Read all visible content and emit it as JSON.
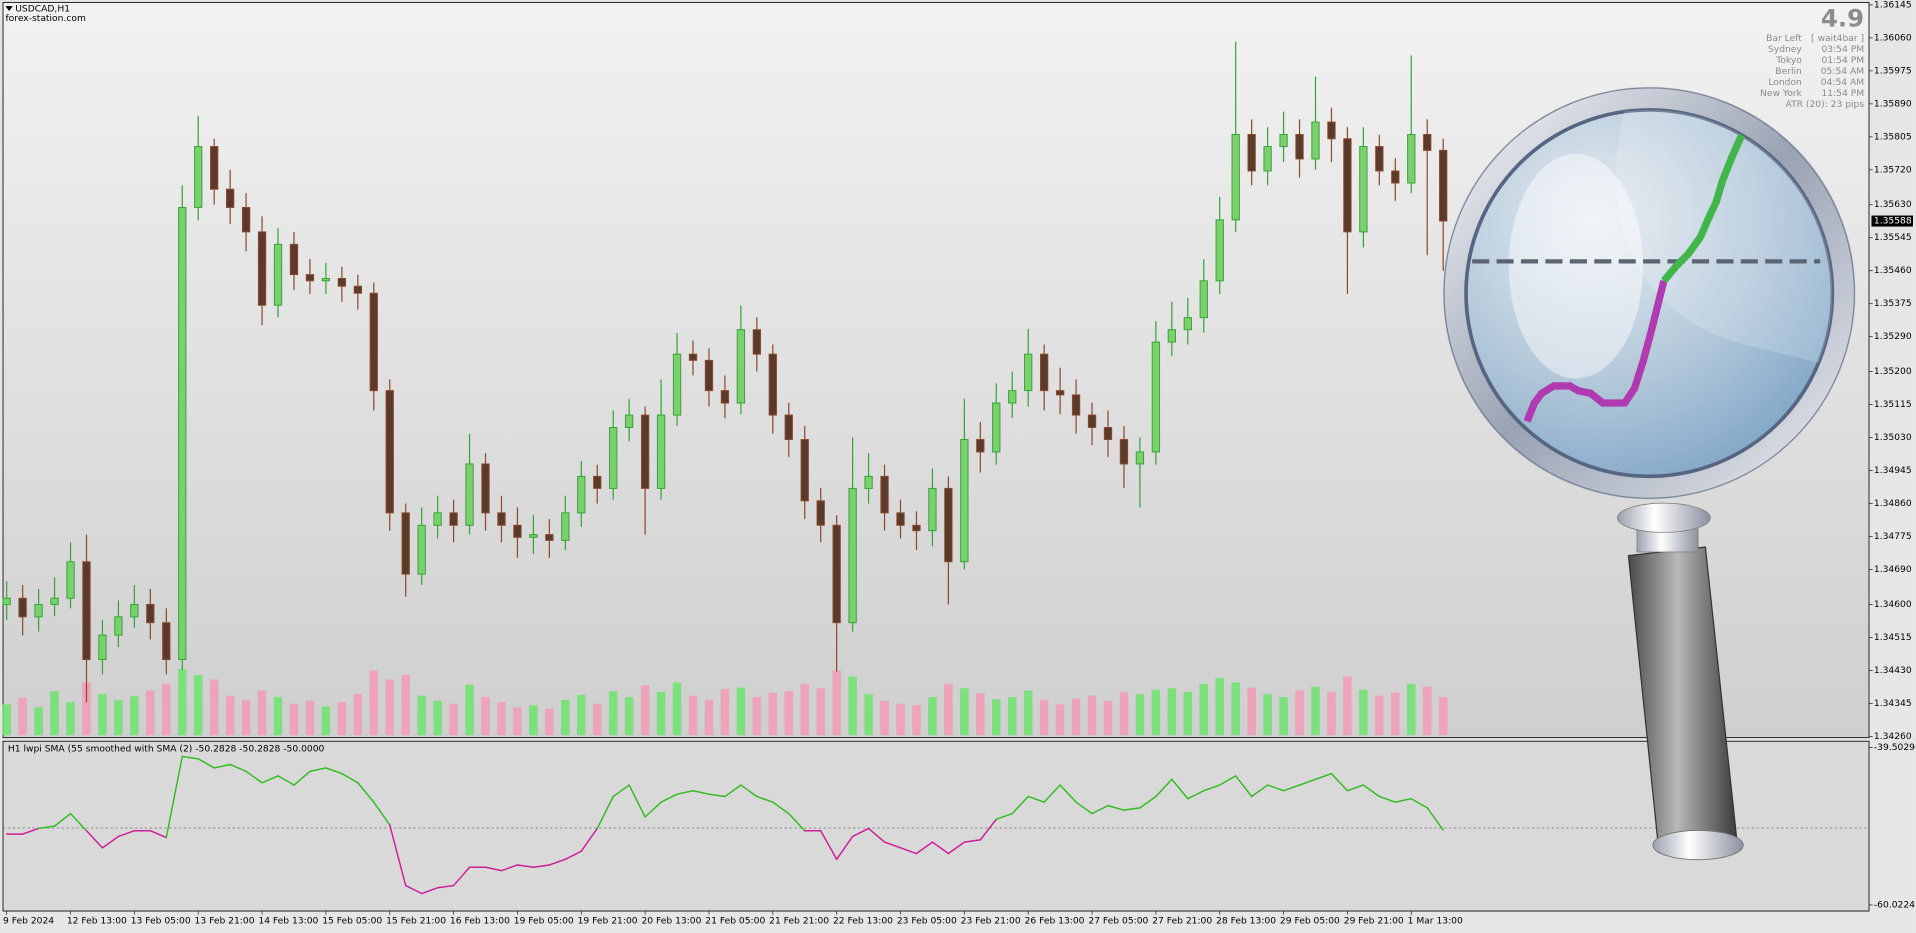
{
  "header": {
    "symbol": "USDCAD,H1",
    "site": "forex-station.com"
  },
  "info": {
    "value": "4.9",
    "rows": [
      [
        "Bar Left",
        "[ wait4bar ]"
      ],
      [
        "Sydney",
        "03:54 PM"
      ],
      [
        "Tokyo",
        "01:54 PM"
      ],
      [
        "Berlin",
        "05:54 AM"
      ],
      [
        "London",
        "04:54 AM"
      ],
      [
        "New York",
        "11:54 PM"
      ]
    ],
    "atr": "ATR (20): 23 pips"
  },
  "chart_data": [
    {
      "type": "candlestick",
      "up_color": "#34a534",
      "down_color": "#8c4a2c",
      "volume_up_color": "#6fe26f",
      "volume_down_color": "#f29bb6",
      "categories": [
        "9 Feb 2024",
        null,
        null,
        null,
        "12 Feb 13:00",
        null,
        null,
        null,
        "13 Feb 05:00",
        null,
        null,
        null,
        "13 Feb 21:00",
        null,
        null,
        null,
        "14 Feb 13:00",
        null,
        null,
        null,
        "15 Feb 05:00",
        null,
        null,
        null,
        "15 Feb 21:00",
        null,
        null,
        null,
        "16 Feb 13:00",
        null,
        null,
        null,
        "19 Feb 05:00",
        null,
        null,
        null,
        "19 Feb 21:00",
        null,
        null,
        null,
        "20 Feb 13:00",
        null,
        null,
        null,
        "21 Feb 05:00",
        null,
        null,
        null,
        "21 Feb 21:00",
        null,
        null,
        null,
        "22 Feb 13:00",
        null,
        null,
        null,
        "23 Feb 05:00",
        null,
        null,
        null,
        "23 Feb 21:00",
        null,
        null,
        null,
        "26 Feb 13:00",
        null,
        null,
        null,
        "27 Feb 05:00",
        null,
        null,
        null,
        "27 Feb 21:00",
        null,
        null,
        null,
        "28 Feb 13:00",
        null,
        null,
        null,
        "29 Feb 05:00",
        null,
        null,
        null,
        "29 Feb 21:00",
        null,
        null,
        null,
        "1 Mar 13:00",
        null,
        null
      ],
      "open": [
        1.346,
        1.34616,
        1.34568,
        1.346,
        1.34616,
        1.3471,
        1.34458,
        1.34521,
        1.34568,
        1.346,
        1.34553,
        1.34458,
        1.35623,
        1.3578,
        1.3567,
        1.35623,
        1.3556,
        1.35371,
        1.35528,
        1.3545,
        1.35434,
        1.3544,
        1.3542,
        1.35402,
        1.35151,
        1.34836,
        1.34678,
        1.34804,
        1.34836,
        1.34804,
        1.34962,
        1.34836,
        1.34804,
        1.34773,
        1.3478,
        1.34765,
        1.34836,
        1.3493,
        1.34899,
        1.35056,
        1.35088,
        1.34899,
        1.35088,
        1.35245,
        1.35229,
        1.35151,
        1.35119,
        1.35308,
        1.35245,
        1.35088,
        1.35025,
        1.34867,
        1.34804,
        1.34553,
        1.34899,
        1.3493,
        1.34836,
        1.34804,
        1.3479,
        1.34899,
        1.3471,
        1.35025,
        1.34993,
        1.35119,
        1.35151,
        1.35245,
        1.35151,
        1.3514,
        1.35088,
        1.35056,
        1.35025,
        1.34962,
        1.34993,
        1.35276,
        1.35308,
        1.35339,
        1.35434,
        1.35591,
        1.35811,
        1.35717,
        1.3578,
        1.35811,
        1.35748,
        1.35843,
        1.358,
        1.3556,
        1.3578,
        1.35717,
        1.35686,
        1.35811,
        1.3577
      ],
      "high": [
        1.3466,
        1.3465,
        1.3464,
        1.3467,
        1.3476,
        1.3478,
        1.3456,
        1.3461,
        1.3465,
        1.3464,
        1.3459,
        1.3568,
        1.35859,
        1.358,
        1.3572,
        1.3566,
        1.356,
        1.3557,
        1.3556,
        1.3549,
        1.3548,
        1.3547,
        1.3545,
        1.3543,
        1.3518,
        1.3486,
        1.3485,
        1.3488,
        1.3487,
        1.3504,
        1.3499,
        1.3488,
        1.3485,
        1.3483,
        1.3482,
        1.3488,
        1.3497,
        1.3496,
        1.351,
        1.3513,
        1.3511,
        1.3518,
        1.353,
        1.3528,
        1.3526,
        1.3519,
        1.3537,
        1.3534,
        1.3527,
        1.3512,
        1.3506,
        1.349,
        1.3483,
        1.3503,
        1.3499,
        1.3496,
        1.3487,
        1.3484,
        1.3495,
        1.3493,
        1.3513,
        1.3507,
        1.3517,
        1.352,
        1.3531,
        1.3527,
        1.3521,
        1.3518,
        1.3512,
        1.351,
        1.3506,
        1.3503,
        1.3533,
        1.3538,
        1.3539,
        1.3549,
        1.3565,
        1.3605,
        1.3585,
        1.3583,
        1.3587,
        1.3585,
        1.3596,
        1.3588,
        1.3583,
        1.3583,
        1.3581,
        1.3575,
        1.36015,
        1.3585,
        1.358
      ],
      "low": [
        1.3456,
        1.3452,
        1.3453,
        1.3457,
        1.3459,
        1.34348,
        1.3442,
        1.3449,
        1.3454,
        1.3451,
        1.3442,
        1.3443,
        1.3559,
        1.3563,
        1.3558,
        1.3551,
        1.3532,
        1.3534,
        1.3541,
        1.354,
        1.354,
        1.3538,
        1.3536,
        1.351,
        1.3479,
        1.3462,
        1.3465,
        1.3477,
        1.3476,
        1.3478,
        1.3479,
        1.3476,
        1.3472,
        1.3473,
        1.3472,
        1.3474,
        1.348,
        1.3486,
        1.3487,
        1.3502,
        1.3478,
        1.3487,
        1.3506,
        1.3519,
        1.3511,
        1.3508,
        1.3509,
        1.352,
        1.3504,
        1.3498,
        1.3482,
        1.3476,
        1.34427,
        1.3453,
        1.3486,
        1.3479,
        1.3477,
        1.3474,
        1.3475,
        1.346,
        1.3469,
        1.3494,
        1.3496,
        1.3508,
        1.3511,
        1.351,
        1.3509,
        1.3504,
        1.3501,
        1.3498,
        1.349,
        1.3485,
        1.3496,
        1.3524,
        1.3527,
        1.353,
        1.354,
        1.3556,
        1.3568,
        1.3568,
        1.3574,
        1.357,
        1.3572,
        1.3574,
        1.354,
        1.3552,
        1.3568,
        1.3564,
        1.3566,
        1.355,
        1.3546
      ],
      "close": [
        1.34616,
        1.34568,
        1.346,
        1.34616,
        1.3471,
        1.34458,
        1.34521,
        1.34568,
        1.346,
        1.34553,
        1.34458,
        1.35623,
        1.3578,
        1.3567,
        1.35623,
        1.3556,
        1.35371,
        1.35528,
        1.3545,
        1.35434,
        1.3544,
        1.3542,
        1.35402,
        1.35151,
        1.34836,
        1.34678,
        1.34804,
        1.34836,
        1.34804,
        1.34962,
        1.34836,
        1.34804,
        1.34773,
        1.3478,
        1.34765,
        1.34836,
        1.3493,
        1.34899,
        1.35056,
        1.35088,
        1.34899,
        1.35088,
        1.35245,
        1.35229,
        1.35151,
        1.35119,
        1.35308,
        1.35245,
        1.35088,
        1.35025,
        1.34867,
        1.34804,
        1.34553,
        1.34899,
        1.3493,
        1.34836,
        1.34804,
        1.3479,
        1.34899,
        1.3471,
        1.35025,
        1.34993,
        1.35119,
        1.35151,
        1.35245,
        1.35151,
        1.3514,
        1.35088,
        1.35056,
        1.35025,
        1.34962,
        1.34993,
        1.35276,
        1.35308,
        1.35339,
        1.35434,
        1.35591,
        1.35811,
        1.35717,
        1.3578,
        1.35811,
        1.35748,
        1.35843,
        1.358,
        1.3556,
        1.3578,
        1.35717,
        1.35686,
        1.35811,
        1.3577,
        1.35588
      ],
      "volume": [
        420,
        510,
        380,
        600,
        450,
        720,
        560,
        480,
        530,
        610,
        700,
        900,
        820,
        760,
        540,
        480,
        610,
        520,
        430,
        470,
        390,
        450,
        560,
        880,
        760,
        820,
        540,
        470,
        430,
        690,
        520,
        450,
        380,
        410,
        360,
        480,
        550,
        430,
        600,
        520,
        680,
        590,
        720,
        540,
        480,
        630,
        650,
        520,
        580,
        600,
        700,
        640,
        880,
        800,
        560,
        470,
        430,
        410,
        520,
        700,
        640,
        570,
        490,
        520,
        610,
        480,
        420,
        500,
        540,
        470,
        590,
        560,
        620,
        640,
        590,
        700,
        780,
        720,
        650,
        560,
        520,
        610,
        660,
        590,
        800,
        620,
        540,
        580,
        700,
        660,
        520
      ],
      "volume_lim": [
        0,
        3000
      ],
      "last_price": 1.35588,
      "ylim": [
        1.3426,
        1.36145
      ],
      "yticks": [
        1.36145,
        {
          "value": 1.3606,
          "label": "1.36060"
        },
        1.35975,
        {
          "value": 1.3589,
          "label": "1.35890"
        },
        1.35805,
        {
          "value": 1.3572,
          "label": "1.35720"
        },
        {
          "value": 1.3563,
          "label": "1.35630"
        },
        1.35545,
        {
          "value": 1.3546,
          "label": "1.35460"
        },
        1.35375,
        {
          "value": 1.3529,
          "label": "1.35290"
        },
        {
          "value": 1.352,
          "label": "1.35200"
        },
        1.35115,
        {
          "value": 1.3503,
          "label": "1.35030"
        },
        1.34945,
        {
          "value": 1.3486,
          "label": "1.34860"
        },
        1.34775,
        {
          "value": 1.3469,
          "label": "1.34690"
        },
        {
          "value": 1.346,
          "label": "1.34600"
        },
        1.34515,
        {
          "value": 1.3443,
          "label": "1.34430"
        },
        1.34345,
        {
          "value": 1.3426,
          "label": "1.34260"
        }
      ]
    },
    {
      "type": "line",
      "title": "H1 lwpi  SMA (55 smoothed with  SMA (2) -50.2828 -50.2828 -50.0000",
      "above_color": "#33bb22",
      "below_color": "#cc1e99",
      "level": -50,
      "values": [
        -50.8,
        -50.8,
        -50.06,
        -49.76,
        -48.13,
        -50.36,
        -52.59,
        -51.1,
        -50.36,
        -50.36,
        -51.25,
        -40.69,
        -40.99,
        -42.18,
        -41.73,
        -42.63,
        -44.11,
        -43.22,
        -44.41,
        -42.63,
        -42.18,
        -42.92,
        -44.11,
        -46.64,
        -49.61,
        -57.5,
        -58.54,
        -57.79,
        -57.5,
        -55.12,
        -55.12,
        -55.56,
        -54.82,
        -55.12,
        -54.82,
        -54.08,
        -53.03,
        -50.06,
        -45.9,
        -44.41,
        -48.57,
        -46.64,
        -45.6,
        -45.15,
        -45.6,
        -45.9,
        -44.41,
        -45.9,
        -46.64,
        -48.13,
        -50.36,
        -50.36,
        -54.08,
        -51.1,
        -50.06,
        -51.84,
        -52.59,
        -53.33,
        -51.84,
        -53.33,
        -51.84,
        -51.55,
        -48.87,
        -48.13,
        -45.9,
        -46.64,
        -44.41,
        -46.64,
        -48.13,
        -47.09,
        -47.68,
        -47.38,
        -45.9,
        -43.67,
        -46.19,
        -45.15,
        -44.41,
        -43.22,
        -45.9,
        -44.41,
        -45.15,
        -44.41,
        -43.67,
        -42.92,
        -45.15,
        -44.41,
        -45.9,
        -46.64,
        -46.19,
        -47.38,
        -50.28
      ],
      "ylim": [
        -60.0224,
        -39.5029
      ],
      "yticks": [
        -39.5029,
        -60.0224
      ]
    }
  ]
}
